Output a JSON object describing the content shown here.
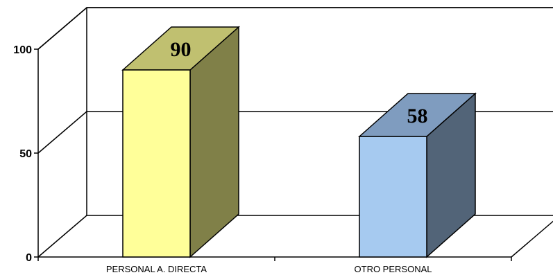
{
  "chart_data": {
    "type": "bar",
    "categories": [
      "PERSONAL A. DIRECTA",
      "OTRO PERSONAL"
    ],
    "values": [
      90,
      58
    ],
    "data_labels": [
      "90",
      "58"
    ],
    "title": "",
    "xlabel": "",
    "ylabel": "",
    "ylim": [
      0,
      100
    ],
    "yticks": [
      "0",
      "50",
      "100"
    ],
    "grid": true,
    "legend": "none",
    "colors": [
      {
        "front": "#ffff99",
        "side": "#808048",
        "top": "#c0c070"
      },
      {
        "front": "#a6caf0",
        "side": "#526478",
        "top": "#7f9cbf"
      }
    ]
  }
}
